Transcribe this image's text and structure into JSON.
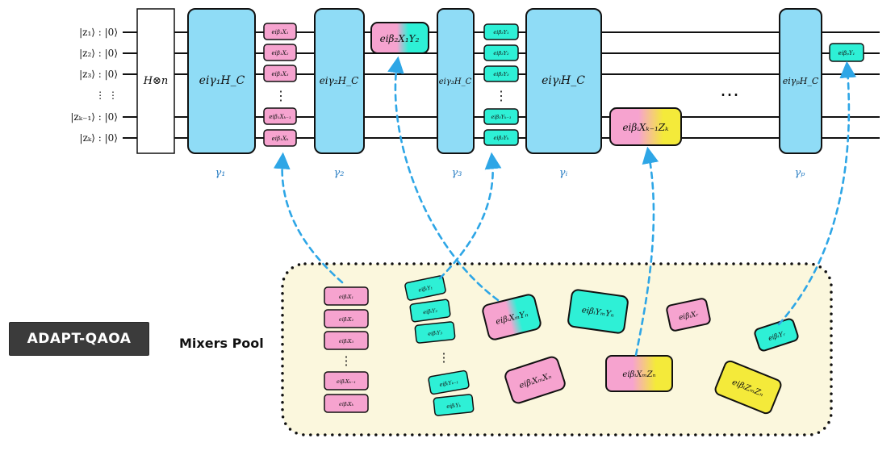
{
  "badge": {
    "label": "ADAPT-QAOA"
  },
  "pool": {
    "label": "Mixers Pool"
  },
  "colors": {
    "cost_block": "#8fdcf6",
    "pink": "#f6a3cf",
    "cyan": "#2ef0d6",
    "yellow": "#f4ea3a",
    "pool_bg": "#fbf7dd",
    "arrow": "#2ea6e6",
    "wire": "#111111"
  },
  "qubits": [
    {
      "ket": "|z₁⟩ : |0⟩"
    },
    {
      "ket": "|z₂⟩ : |0⟩"
    },
    {
      "ket": "|z₃⟩ : |0⟩"
    },
    {
      "ket": "⋮     ⋮"
    },
    {
      "ket": "|zₖ₋₁⟩ : |0⟩"
    },
    {
      "ket": "|zₖ⟩ : |0⟩"
    }
  ],
  "hadamard": {
    "label": "H⊗n"
  },
  "layers": [
    {
      "gate": "e^{iγ1HC}",
      "gate_text": "eiγ₁H_C",
      "angle": "γ₁"
    },
    {
      "gate": "e^{iγ2HC}",
      "gate_text": "eiγ₂H_C",
      "angle": "γ₂"
    },
    {
      "gate": "e^{iγ3HC}",
      "gate_text": "eiγ₃H_C",
      "angle": "γ₃"
    },
    {
      "gate": "e^{iγiHC}",
      "gate_text": "eiγᵢH_C",
      "angle": "γᵢ"
    },
    {
      "gate": "e^{iγpHC}",
      "gate_text": "eiγₚH_C",
      "angle": "γₚ"
    }
  ],
  "ellipsis": "⋯",
  "mixers_in_circuit": {
    "x_stack": [
      "eiβ₁X₁",
      "eiβ₁X₂",
      "eiβ₁X₃",
      "⋮",
      "eiβ₁Xₖ₋₁",
      "eiβ₁Xₖ"
    ],
    "xy_gate": "eiβ₂X₁Y₂",
    "y_stack": [
      "eiβ₃Y₁",
      "eiβ₃Y₂",
      "eiβ₃Y₃",
      "⋮",
      "eiβ₃Yₖ₋₁",
      "eiβ₃Yₖ"
    ],
    "xz_gate": "eiβᵢXₖ₋₁Zₖ",
    "y1_gate": "eiβₚY₁"
  },
  "pool_items": {
    "x_stack": [
      "eiβᵢX₁",
      "eiβᵢX₂",
      "eiβᵢX₃",
      "⋮",
      "eiβᵢXₖ₋₁",
      "eiβᵢXₖ"
    ],
    "y_stack": [
      "eiβᵢY₁",
      "eiβᵢY₂",
      "eiβᵢY₃",
      "⋮",
      "eiβᵢYₖ₋₁",
      "eiβᵢYₖ"
    ],
    "xmyn": "eiβᵢXₘYₙ",
    "ymyn": "eiβᵢYₘYₙ",
    "xr": "eiβᵢXᵣ",
    "yr": "eiβᵢYᵣ",
    "xmxn": "eiβᵢXₘXₙ",
    "xmzn": "eiβᵢXₘZₙ",
    "zmzn": "eiβᵢZₘZₙ"
  }
}
